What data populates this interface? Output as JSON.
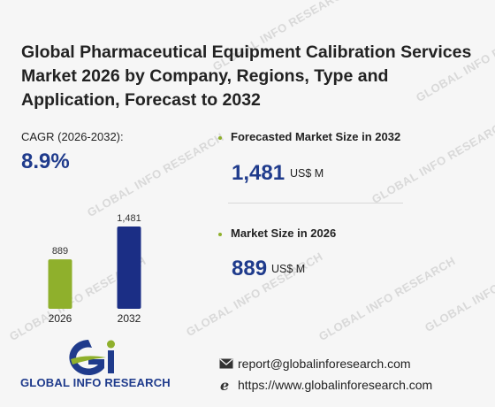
{
  "title": "Global Pharmaceutical Equipment Calibration Services Market 2026 by Company, Regions, Type and Application, Forecast to 2032",
  "cagr": {
    "label": "CAGR (2026-2032):",
    "value": "8.9%"
  },
  "forecast": {
    "label": "Forecasted Market Size in 2032",
    "value": "1,481",
    "unit": "US$ M"
  },
  "current": {
    "label": "Market Size in 2026",
    "value": "889",
    "unit": "US$ M"
  },
  "watermark": "GLOBAL INFO RESEARCH",
  "logo": {
    "text": "GLOBAL INFO RESEARCH"
  },
  "contact": {
    "email": "report@globalinforesearch.com",
    "website": "https://www.globalinforesearch.com"
  },
  "colors": {
    "accent": "#1f3b8c",
    "green": "#8fb02c",
    "navy": "#1b2e85",
    "bullet": "#8fb02c"
  },
  "chart_data": {
    "type": "bar",
    "categories": [
      "2026",
      "2032"
    ],
    "values": [
      889,
      1481
    ],
    "value_labels": [
      "889",
      "1,481"
    ],
    "bar_colors": [
      "#8fb02c",
      "#1b2e85"
    ],
    "ylim": [
      0,
      1481
    ],
    "grid": false
  }
}
